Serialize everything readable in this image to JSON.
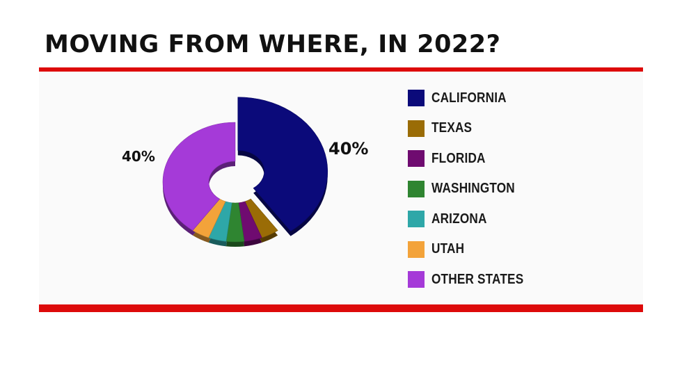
{
  "title": "MOVING FROM WHERE, IN 2022?",
  "chart_data": {
    "type": "pie",
    "style": "3d-donut",
    "title": "MOVING FROM WHERE, IN 2022?",
    "categories": [
      "CALIFORNIA",
      "TEXAS",
      "FLORIDA",
      "WASHINGTON",
      "ARIZONA",
      "UTAH",
      "OTHER STATES"
    ],
    "values": [
      40,
      4,
      4,
      4,
      4,
      4,
      40
    ],
    "colors": [
      "#0b0a7a",
      "#9a6c06",
      "#6f0b70",
      "#2f8531",
      "#2ea7a8",
      "#f3a33a",
      "#a53ad8"
    ],
    "data_labels": {
      "CALIFORNIA": "40%",
      "OTHER STATES": "40%"
    },
    "exploded": "CALIFORNIA",
    "legend_position": "right"
  }
}
